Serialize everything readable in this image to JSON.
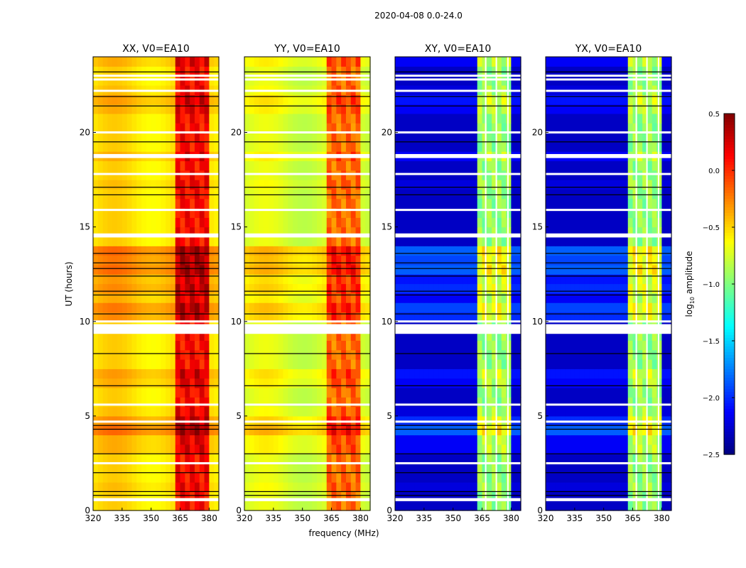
{
  "chart_data": {
    "type": "heatmap",
    "title": "2020-04-08 0.0-24.0",
    "xlabel": "frequency (MHz)",
    "ylabel": "UT (hours)",
    "xlim": [
      320,
      385
    ],
    "ylim": [
      0,
      24
    ],
    "xticks": [
      "320",
      "335",
      "350",
      "365",
      "380"
    ],
    "yticks": [
      "0",
      "5",
      "10",
      "15",
      "20"
    ],
    "colorbar": {
      "label": "log10 amplitude",
      "label_main": "log",
      "label_sub": "10",
      "label_tail": " amplitude",
      "range": [
        -2.5,
        0.5
      ],
      "ticks": [
        "0.5",
        "0.0",
        "−0.5",
        "−1.0",
        "−1.5",
        "−2.0",
        "−2.5"
      ],
      "tick_values": [
        0.5,
        0.0,
        -0.5,
        -1.0,
        -1.5,
        -2.0,
        -2.5
      ],
      "colormap": "jet"
    },
    "flagged_hours_white": [
      0.55,
      0.6,
      2.5,
      4.7,
      5.6,
      9.4,
      9.5,
      9.6,
      9.7,
      9.8,
      10.0,
      14.5,
      14.6,
      15.9,
      17.8,
      18.7,
      18.8,
      20.0,
      22.2,
      22.8,
      23.0
    ],
    "flagged_hours_black": [
      0.8,
      1.0,
      2.0,
      3.0,
      4.3,
      4.5,
      6.6,
      8.3,
      10.4,
      11.4,
      11.6,
      12.4,
      12.8,
      13.1,
      13.6,
      16.7,
      17.1,
      19.5,
      21.4,
      21.9,
      23.2
    ],
    "time_offsets": [
      0,
      0,
      0.05,
      0,
      0,
      0,
      0.1,
      0.1,
      0.3,
      0.2,
      0.05,
      0,
      0,
      0.1,
      0.15,
      0,
      0,
      0,
      0,
      0,
      0.2,
      0.25,
      0.1,
      0.2,
      0.15,
      0.3,
      0.25,
      0.3,
      0,
      0,
      0,
      0,
      0,
      0,
      0.05,
      0,
      0,
      0.1,
      0,
      0,
      0,
      0,
      0.1,
      0.15,
      0.05,
      0,
      0,
      0.1
    ],
    "panels": [
      {
        "title": "XX, V0=EA10",
        "base": -0.55,
        "band": [
          363,
          381
        ],
        "band_level": 0.1,
        "gaps": []
      },
      {
        "title": "YY, V0=EA10",
        "base": -0.75,
        "band": [
          363,
          381
        ],
        "band_level": -0.2,
        "gaps": []
      },
      {
        "title": "XY, V0=EA10",
        "base": -2.3,
        "band": [
          362,
          381
        ],
        "band_level": -0.95,
        "gaps": [
          366.5,
          372,
          378
        ]
      },
      {
        "title": "YX, V0=EA10",
        "base": -2.3,
        "band": [
          362,
          381
        ],
        "band_level": -0.95,
        "gaps": [
          366.5,
          372,
          378
        ]
      }
    ]
  }
}
